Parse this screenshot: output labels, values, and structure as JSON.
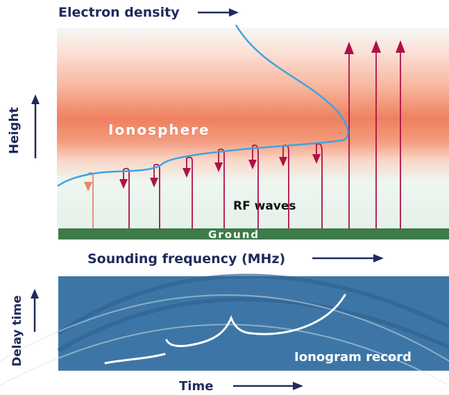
{
  "labels": {
    "electron_density": "Electron density",
    "height": "Height",
    "ionosphere": "Ionosphere",
    "rf_waves": "RF waves",
    "ground": "Ground",
    "sounding_frequency": "Sounding frequency (MHz)",
    "delay_time": "Delay time",
    "ionogram_record": "Ionogram record",
    "time": "Time"
  },
  "colors": {
    "ionosphere_peak": "#ef8060",
    "ground": "#3e7a4b",
    "ionogram_panel": "#3d76a6",
    "density_curve": "#3ea3e0",
    "ray": "#b0104a",
    "axis_text": "#1f2a5c"
  }
}
